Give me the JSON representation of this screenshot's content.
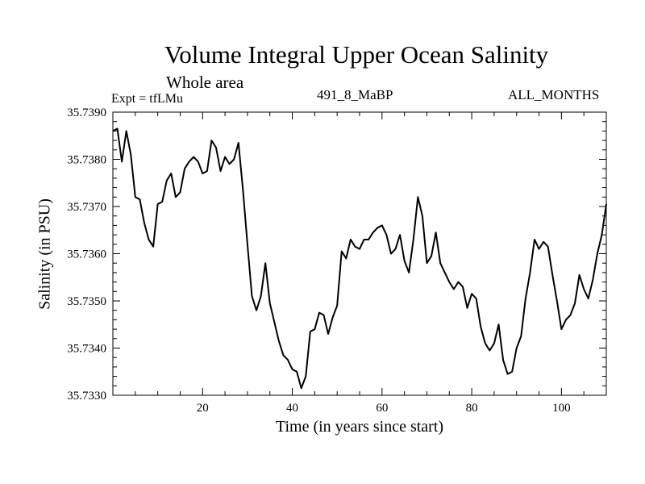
{
  "chart_data": {
    "type": "line",
    "title": "Volume Integral Upper Ocean Salinity",
    "subtitle": "Whole area",
    "experiment_label": "Expt = tfLMu",
    "run_label": "491_8_MaBP",
    "months_label": "ALL_MONTHS",
    "xlabel": "Time (in years since start)",
    "ylabel": "Salinity (in PSU)",
    "xlim": [
      0,
      110
    ],
    "ylim": [
      35.733,
      35.739
    ],
    "xticks": [
      20,
      40,
      60,
      80,
      100
    ],
    "yticks": [
      "35.7330",
      "35.7340",
      "35.7350",
      "35.7360",
      "35.7370",
      "35.7380",
      "35.7390"
    ],
    "line_color": "#000000",
    "series": [
      {
        "name": "Salinity",
        "x": [
          0,
          1,
          2,
          3,
          4,
          5,
          6,
          7,
          8,
          9,
          10,
          11,
          12,
          13,
          14,
          15,
          16,
          17,
          18,
          19,
          20,
          21,
          22,
          23,
          24,
          25,
          26,
          27,
          28,
          29,
          30,
          31,
          32,
          33,
          34,
          35,
          36,
          37,
          38,
          39,
          40,
          41,
          42,
          43,
          44,
          45,
          46,
          47,
          48,
          49,
          50,
          51,
          52,
          53,
          54,
          55,
          56,
          57,
          58,
          59,
          60,
          61,
          62,
          63,
          64,
          65,
          66,
          67,
          68,
          69,
          70,
          71,
          72,
          73,
          74,
          75,
          76,
          77,
          78,
          79,
          80,
          81,
          82,
          83,
          84,
          85,
          86,
          87,
          88,
          89,
          90,
          91,
          92,
          93,
          94,
          95,
          96,
          97,
          98,
          99,
          100,
          101,
          102,
          103,
          104,
          105,
          106,
          107,
          108,
          109,
          110
        ],
        "values": [
          35.7386,
          35.73865,
          35.73795,
          35.7386,
          35.7381,
          35.7372,
          35.73715,
          35.73665,
          35.7363,
          35.73615,
          35.73705,
          35.7371,
          35.73755,
          35.7377,
          35.7372,
          35.7373,
          35.7378,
          35.73795,
          35.73805,
          35.73795,
          35.7377,
          35.73775,
          35.7384,
          35.73825,
          35.73775,
          35.73805,
          35.7379,
          35.738,
          35.73835,
          35.73735,
          35.7362,
          35.7351,
          35.7348,
          35.7351,
          35.7358,
          35.73495,
          35.73455,
          35.73415,
          35.73385,
          35.73375,
          35.73355,
          35.7335,
          35.73315,
          35.7334,
          35.73435,
          35.7344,
          35.73475,
          35.7347,
          35.7343,
          35.73465,
          35.7349,
          35.73605,
          35.7359,
          35.7363,
          35.73615,
          35.7361,
          35.7363,
          35.7363,
          35.73645,
          35.73655,
          35.7366,
          35.7364,
          35.736,
          35.7361,
          35.7364,
          35.73585,
          35.7356,
          35.7363,
          35.7372,
          35.7368,
          35.7358,
          35.73595,
          35.73645,
          35.7358,
          35.7356,
          35.7354,
          35.73525,
          35.7354,
          35.7353,
          35.73485,
          35.73515,
          35.73505,
          35.73445,
          35.7341,
          35.73395,
          35.7341,
          35.7345,
          35.73375,
          35.73345,
          35.7335,
          35.734,
          35.73425,
          35.73505,
          35.7356,
          35.7363,
          35.7361,
          35.73625,
          35.73615,
          35.73555,
          35.735,
          35.7344,
          35.7346,
          35.7347,
          35.73495,
          35.73555,
          35.73525,
          35.73505,
          35.73545,
          35.736,
          35.7364,
          35.73705
        ]
      }
    ]
  }
}
